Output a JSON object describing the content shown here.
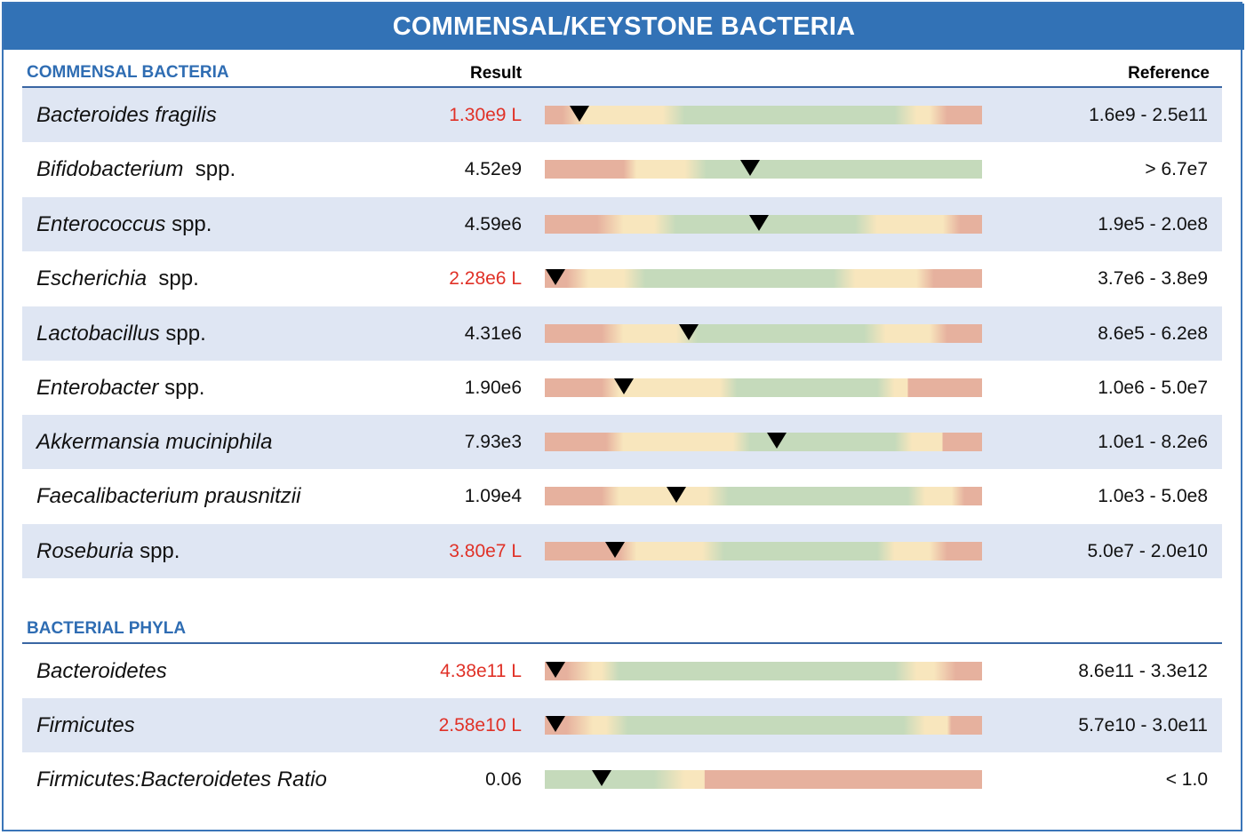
{
  "header": {
    "title": "COMMENSAL/KEYSTONE BACTERIA"
  },
  "columns": {
    "result": "Result",
    "reference": "Reference"
  },
  "colors": {
    "accent": "#3272b6",
    "low": "#e03127",
    "red_zone": "#e6b19e",
    "yellow_zone": "#f8e6bd",
    "green_zone": "#c5dabb",
    "row_shade": "#dfe6f3"
  },
  "sections": [
    {
      "title": "COMMENSAL BACTERIA",
      "rows": [
        {
          "genus": "Bacteroides fragilis",
          "suffix": "",
          "result": "1.30e9 L",
          "flag": "low",
          "reference": "1.6e9 - 2.5e11",
          "marker_pct": 8,
          "zones": "r0-3,y8-12,y26-31,g31-80,y83-87,r91-100"
        },
        {
          "genus": "Bifidobacterium",
          "suffix": "  spp.",
          "result": "4.52e9",
          "flag": "",
          "reference": "> 6.7e7",
          "marker_pct": 47,
          "zones": "r0-17,y20-32,g37-100"
        },
        {
          "genus": "Enterococcus",
          "suffix": " spp.",
          "result": "4.59e6",
          "flag": "",
          "reference": "1.9e5 - 2.0e8",
          "marker_pct": 49,
          "zones": ""
        },
        {
          "genus": "Escherichia",
          "suffix": "  spp.",
          "result": "2.28e6 L",
          "flag": "low",
          "reference": "3.7e6 - 3.8e9",
          "marker_pct": 2.5,
          "zones": ""
        },
        {
          "genus": "Lactobacillus",
          "suffix": " spp.",
          "result": "4.31e6",
          "flag": "",
          "reference": "8.6e5 - 6.2e8",
          "marker_pct": 33,
          "zones": ""
        },
        {
          "genus": "Enterobacter",
          "suffix": " spp.",
          "result": "1.90e6",
          "flag": "",
          "reference": "1.0e6 - 5.0e7",
          "marker_pct": 18,
          "zones": ""
        },
        {
          "genus": "Akkermansia muciniphila",
          "suffix": "",
          "result": "7.93e3",
          "flag": "",
          "reference": "1.0e1 - 8.2e6",
          "marker_pct": 53,
          "zones": ""
        },
        {
          "genus": "Faecalibacterium prausnitzii",
          "suffix": "",
          "result": "1.09e4",
          "flag": "",
          "reference": "1.0e3 - 5.0e8",
          "marker_pct": 30,
          "zones": ""
        },
        {
          "genus": "Roseburia",
          "suffix": " spp.",
          "result": "3.80e7 L",
          "flag": "low",
          "reference": "5.0e7 - 2.0e10",
          "marker_pct": 16,
          "zones": ""
        }
      ]
    },
    {
      "title": "BACTERIAL PHYLA",
      "rows": [
        {
          "genus": "Bacteroidetes",
          "suffix": "",
          "result": "4.38e11 L",
          "flag": "low",
          "reference": "8.6e11 - 3.3e12",
          "marker_pct": 2.5,
          "zones": ""
        },
        {
          "genus": "Firmicutes",
          "suffix": "",
          "result": "2.58e10 L",
          "flag": "low",
          "reference": "5.7e10 - 3.0e11",
          "marker_pct": 2.5,
          "zones": ""
        },
        {
          "genus": "Firmicutes:Bacteroidetes Ratio",
          "suffix": "",
          "result": "0.06",
          "flag": "",
          "reference": "< 1.0",
          "marker_pct": 13,
          "zones": ""
        }
      ]
    }
  ],
  "bar_gradients": [
    "linear-gradient(to right,#e6b19e 0%,#e6b19e 4%,#f8e6bd 9%,#f8e6bd 27%,#c5dabb 32%,#c5dabb 80%,#f8e6bd 85%,#f8e6bd 88%,#e6b19e 92%,#e6b19e 100%)",
    "linear-gradient(to right,#e6b19e 0%,#e6b19e 18%,#f8e6bd 21%,#f8e6bd 32%,#c5dabb 37%,#c5dabb 100%)",
    "linear-gradient(to right,#e6b19e 0%,#e6b19e 12%,#f8e6bd 18%,#f8e6bd 25%,#c5dabb 30%,#c5dabb 71%,#f8e6bd 76%,#f8e6bd 91%,#e6b19e 95%,#e6b19e 100%)",
    "linear-gradient(to right,#e6b19e 0%,#e6b19e 5%,#f8e6bd 10%,#f8e6bd 18%,#c5dabb 23%,#c5dabb 66%,#f8e6bd 71%,#f8e6bd 85%,#e6b19e 89%,#e6b19e 100%)",
    "linear-gradient(to right,#e6b19e 0%,#e6b19e 13%,#f8e6bd 18%,#f8e6bd 30%,#c5dabb 35%,#c5dabb 73%,#f8e6bd 78%,#f8e6bd 88%,#e6b19e 92%,#e6b19e 100%)",
    "linear-gradient(to right,#e6b19e 0%,#e6b19e 13%,#f8e6bd 17%,#f8e6bd 40%,#c5dabb 44%,#c5dabb 76%,#f8e6bd 80%,#f8e6bd 83%,#e6b19e 83%,#e6b19e 100%)",
    "linear-gradient(to right,#e6b19e 0%,#e6b19e 14%,#f8e6bd 18%,#f8e6bd 43%,#c5dabb 47%,#c5dabb 80%,#f8e6bd 84%,#f8e6bd 91%,#e6b19e 91%,#e6b19e 100%)",
    "linear-gradient(to right,#e6b19e 0%,#e6b19e 13%,#f8e6bd 17%,#f8e6bd 37%,#c5dabb 42%,#c5dabb 83%,#f8e6bd 87%,#f8e6bd 93%,#e6b19e 96%,#e6b19e 100%)",
    "linear-gradient(to right,#e6b19e 0%,#e6b19e 17%,#f8e6bd 21%,#f8e6bd 36%,#c5dabb 41%,#c5dabb 76%,#f8e6bd 80%,#f8e6bd 88%,#e6b19e 92%,#e6b19e 100%)",
    "linear-gradient(to right,#e6b19e 0%,#e6b19e 5%,#f8e6bd 11%,#f8e6bd 13%,#c5dabb 17%,#c5dabb 80%,#f8e6bd 85%,#f8e6bd 89%,#e6b19e 94%,#e6b19e 100%)",
    "linear-gradient(to right,#e6b19e 0%,#e6b19e 5%,#f8e6bd 11%,#f8e6bd 14%,#c5dabb 19%,#c5dabb 82%,#f8e6bd 87%,#f8e6bd 92%,#e6b19e 93%,#e6b19e 100%)",
    "linear-gradient(to right,#c5dabb 0%,#c5dabb 25%,#f8e6bd 32%,#f8e6bd 36.5%,#e6b19e 36.6%,#e6b19e 100%)"
  ]
}
